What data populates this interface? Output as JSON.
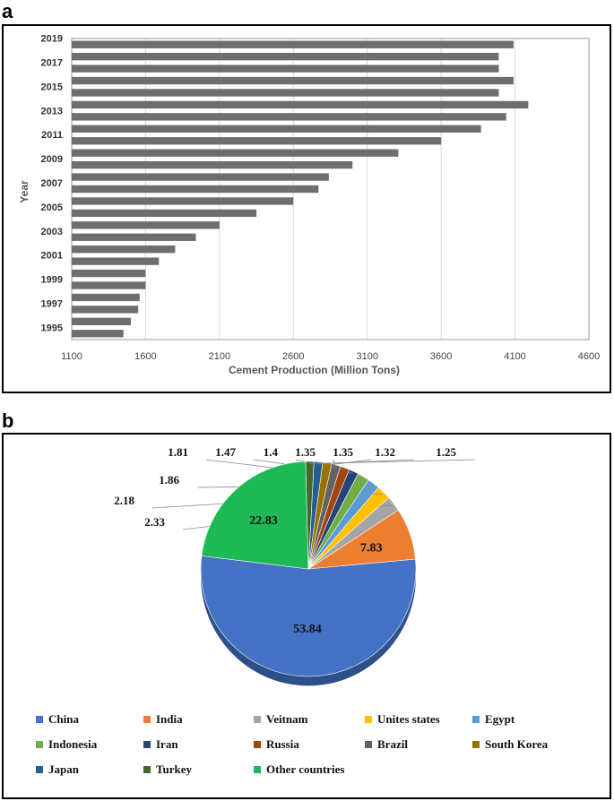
{
  "panels": {
    "a_label": "a",
    "b_label": "b"
  },
  "colors": {
    "bar": "#6e6e6e",
    "grid": "#d9d9d9",
    "axis": "#9a9a9a"
  },
  "chart_data": [
    {
      "type": "bar",
      "orientation": "horizontal",
      "xlabel": "Cement Production (Million Tons)",
      "ylabel": "Year",
      "xlim": [
        1100,
        4600
      ],
      "xticks": [
        "1100",
        "1600",
        "2100",
        "2600",
        "3100",
        "3600",
        "4100",
        "4600"
      ],
      "yticks": [
        "2019",
        "2017",
        "2015",
        "2013",
        "2011",
        "2009",
        "2007",
        "2005",
        "2003",
        "2001",
        "1999",
        "1997",
        "1995"
      ],
      "grid": "vertical",
      "categories": [
        "1995",
        "1996",
        "1997",
        "1998",
        "1999",
        "2000",
        "2001",
        "2002",
        "2003",
        "2004",
        "2005",
        "2006",
        "2007",
        "2008",
        "2009",
        "2010",
        "2011",
        "2012",
        "2013",
        "2014",
        "2015",
        "2016",
        "2017",
        "2018",
        "2019"
      ],
      "values": [
        1450,
        1500,
        1550,
        1560,
        1600,
        1600,
        1690,
        1800,
        1940,
        2100,
        2350,
        2600,
        2770,
        2840,
        3000,
        3310,
        3600,
        3870,
        4040,
        4190,
        3990,
        4090,
        3990,
        3990,
        4090
      ]
    },
    {
      "type": "pie",
      "legend_position": "bottom",
      "slices": [
        {
          "name": "China",
          "value": 53.84,
          "color": "#4472c4",
          "label": "53.84"
        },
        {
          "name": "India",
          "value": 7.83,
          "color": "#ed7d31",
          "label": "7.83"
        },
        {
          "name": "Veitnam",
          "value": 2.33,
          "color": "#a5a5a5",
          "label": "2.33"
        },
        {
          "name": "Unites states",
          "value": 2.18,
          "color": "#ffc000",
          "label": "2.18"
        },
        {
          "name": "Egypt",
          "value": 1.86,
          "color": "#5b9bd5",
          "label": "1.86"
        },
        {
          "name": "Indonesia",
          "value": 1.81,
          "color": "#70ad47",
          "label": "1.81"
        },
        {
          "name": "Iran",
          "value": 1.47,
          "color": "#264478",
          "label": "1.47"
        },
        {
          "name": "Russia",
          "value": 1.4,
          "color": "#9e480e",
          "label": "1.4"
        },
        {
          "name": "Brazil",
          "value": 1.35,
          "color": "#636363",
          "label": "1.35"
        },
        {
          "name": "South Korea",
          "value": 1.35,
          "color": "#997300",
          "label": "1.35"
        },
        {
          "name": "Japan",
          "value": 1.32,
          "color": "#255e91",
          "label": "1.32"
        },
        {
          "name": "Turkey",
          "value": 1.25,
          "color": "#43682b",
          "label": "1.25"
        },
        {
          "name": "Other countries",
          "value": 22.83,
          "color": "#1db954",
          "label": "22.83"
        }
      ]
    }
  ]
}
